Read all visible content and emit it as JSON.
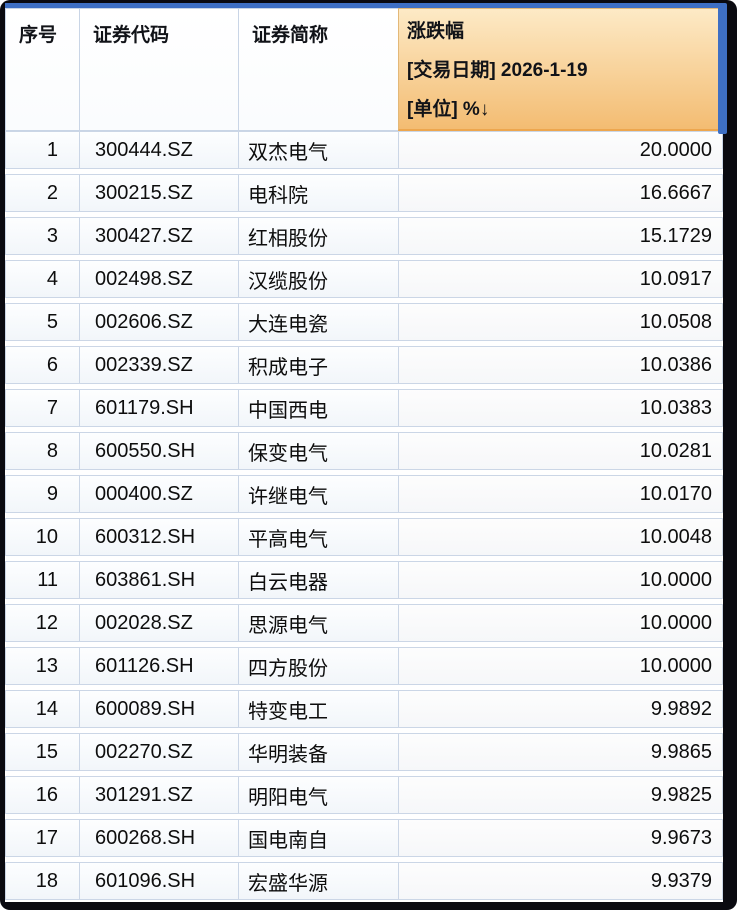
{
  "window": {
    "accent_color": "#3e6fc4",
    "frame_color": "#0a0a10",
    "scroll_thumb_color": "#3e6fc4"
  },
  "table": {
    "header": {
      "seq": "序号",
      "code": "证券代码",
      "name": "证券简称",
      "change_title": "涨跌幅",
      "change_date_line": "[交易日期] 2026-1-19",
      "change_unit_line": "[单位] %",
      "sort_arrow": "↓",
      "change_header_colors": {
        "top": "#fdeac6",
        "bottom": "#f3bc72",
        "bottom_border": "#eda64e"
      }
    },
    "rows": [
      {
        "seq": "1",
        "code": "300444.SZ",
        "name": "双杰电气",
        "change": "20.0000"
      },
      {
        "seq": "2",
        "code": "300215.SZ",
        "name": "电科院",
        "change": "16.6667"
      },
      {
        "seq": "3",
        "code": "300427.SZ",
        "name": "红相股份",
        "change": "15.1729"
      },
      {
        "seq": "4",
        "code": "002498.SZ",
        "name": "汉缆股份",
        "change": "10.0917"
      },
      {
        "seq": "5",
        "code": "002606.SZ",
        "name": "大连电瓷",
        "change": "10.0508"
      },
      {
        "seq": "6",
        "code": "002339.SZ",
        "name": "积成电子",
        "change": "10.0386"
      },
      {
        "seq": "7",
        "code": "601179.SH",
        "name": "中国西电",
        "change": "10.0383"
      },
      {
        "seq": "8",
        "code": "600550.SH",
        "name": "保变电气",
        "change": "10.0281"
      },
      {
        "seq": "9",
        "code": "000400.SZ",
        "name": "许继电气",
        "change": "10.0170"
      },
      {
        "seq": "10",
        "code": "600312.SH",
        "name": "平高电气",
        "change": "10.0048"
      },
      {
        "seq": "11",
        "code": "603861.SH",
        "name": "白云电器",
        "change": "10.0000"
      },
      {
        "seq": "12",
        "code": "002028.SZ",
        "name": "思源电气",
        "change": "10.0000"
      },
      {
        "seq": "13",
        "code": "601126.SH",
        "name": "四方股份",
        "change": "10.0000"
      },
      {
        "seq": "14",
        "code": "600089.SH",
        "name": "特变电工",
        "change": "9.9892"
      },
      {
        "seq": "15",
        "code": "002270.SZ",
        "name": "华明装备",
        "change": "9.9865"
      },
      {
        "seq": "16",
        "code": "301291.SZ",
        "name": "明阳电气",
        "change": "9.9825"
      },
      {
        "seq": "17",
        "code": "600268.SH",
        "name": "国电南自",
        "change": "9.9673"
      },
      {
        "seq": "18",
        "code": "601096.SH",
        "name": "宏盛华源",
        "change": "9.9379"
      }
    ]
  }
}
